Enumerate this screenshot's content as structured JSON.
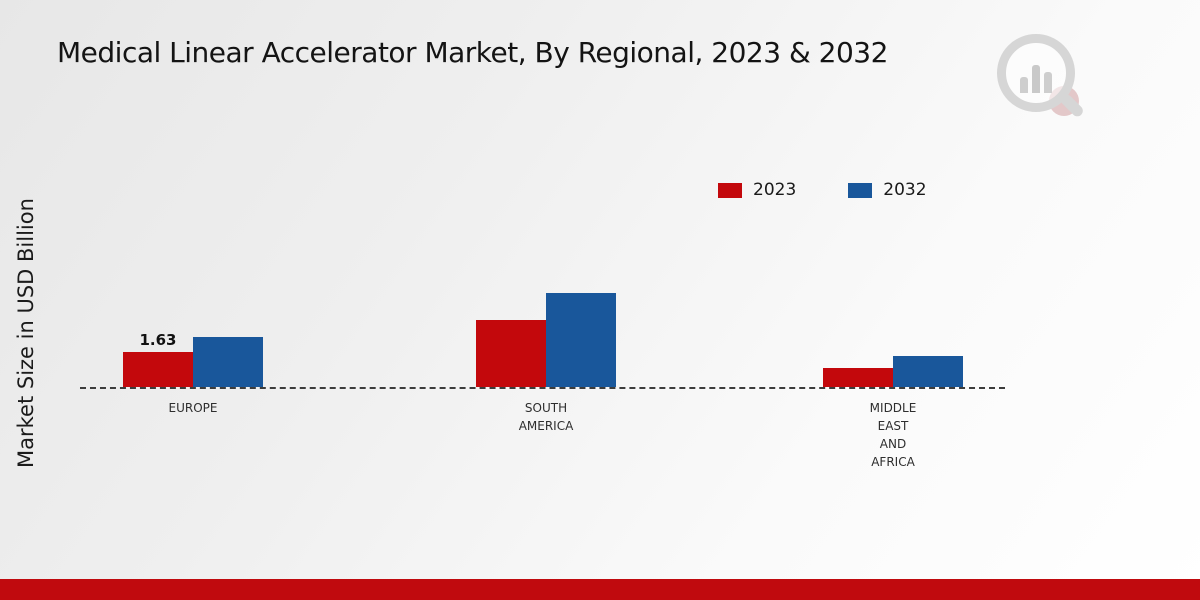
{
  "theme": {
    "accent_red": "#c3080c",
    "accent_blue": "#19579b",
    "footer_bar_color": "#c00a0e",
    "background_from": "#e7e7e7",
    "background_to": "#ffffff"
  },
  "chart_data": {
    "type": "bar",
    "title": "Medical Linear Accelerator Market, By Regional, 2023 & 2032",
    "ylabel": "Market Size in USD Billion",
    "xlabel": "",
    "units": "USD Billion",
    "categories": [
      "EUROPE",
      "SOUTH AMERICA",
      "MIDDLE EAST AND AFRICA"
    ],
    "series": [
      {
        "name": "2023",
        "color": "#c3080c",
        "values": [
          1.63,
          3.1,
          0.9
        ],
        "labels": [
          "1.63",
          "",
          ""
        ]
      },
      {
        "name": "2032",
        "color": "#19579b",
        "values": [
          2.33,
          4.37,
          1.45
        ],
        "labels": [
          "",
          "",
          ""
        ]
      }
    ],
    "ylim": [
      0,
      5
    ],
    "grid": false,
    "baseline_style": "dashed",
    "legend_position": "top-right"
  }
}
